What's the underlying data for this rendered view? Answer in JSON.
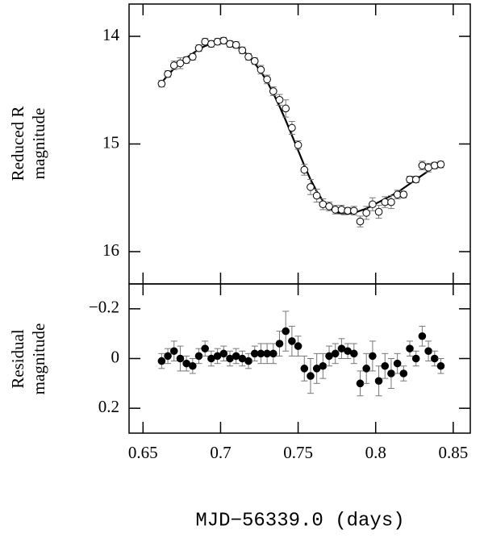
{
  "chart_data": [
    {
      "type": "scatter",
      "marker": "open",
      "ylabel": [
        "Reduced R",
        "magnitude"
      ],
      "xlim": [
        0.641,
        0.861
      ],
      "xticks": [
        0.65,
        0.7,
        0.75,
        0.8,
        0.85
      ],
      "ylim": [
        16.3,
        13.7
      ],
      "yticks": [
        14,
        15,
        16
      ],
      "x": [
        0.662,
        0.666,
        0.67,
        0.674,
        0.678,
        0.682,
        0.686,
        0.69,
        0.694,
        0.698,
        0.702,
        0.706,
        0.71,
        0.714,
        0.718,
        0.722,
        0.726,
        0.73,
        0.734,
        0.738,
        0.742,
        0.746,
        0.75,
        0.754,
        0.758,
        0.762,
        0.766,
        0.77,
        0.774,
        0.778,
        0.782,
        0.786,
        0.79,
        0.794,
        0.798,
        0.802,
        0.806,
        0.81,
        0.814,
        0.818,
        0.822,
        0.826,
        0.83,
        0.834,
        0.838,
        0.842
      ],
      "values": [
        14.44,
        14.35,
        14.27,
        14.25,
        14.22,
        14.19,
        14.11,
        14.05,
        14.07,
        14.05,
        14.04,
        14.07,
        14.08,
        14.13,
        14.19,
        14.23,
        14.31,
        14.4,
        14.51,
        14.59,
        14.67,
        14.85,
        15.01,
        15.24,
        15.4,
        15.48,
        15.56,
        15.58,
        15.61,
        15.61,
        15.62,
        15.62,
        15.72,
        15.64,
        15.56,
        15.63,
        15.54,
        15.54,
        15.47,
        15.47,
        15.33,
        15.33,
        15.2,
        15.22,
        15.2,
        15.19
      ],
      "errors": [
        0.03,
        0.03,
        0.04,
        0.05,
        0.03,
        0.03,
        0.03,
        0.03,
        0.03,
        0.03,
        0.03,
        0.03,
        0.03,
        0.03,
        0.03,
        0.03,
        0.04,
        0.04,
        0.04,
        0.05,
        0.08,
        0.06,
        0.04,
        0.05,
        0.07,
        0.06,
        0.05,
        0.04,
        0.04,
        0.04,
        0.03,
        0.04,
        0.05,
        0.06,
        0.06,
        0.06,
        0.05,
        0.06,
        0.04,
        0.03,
        0.03,
        0.03,
        0.04,
        0.04,
        0.03,
        0.03
      ],
      "model": [
        14.43,
        14.36,
        14.3,
        14.25,
        14.2,
        14.16,
        14.12,
        14.09,
        14.07,
        14.06,
        14.06,
        14.07,
        14.09,
        14.13,
        14.18,
        14.25,
        14.33,
        14.42,
        14.53,
        14.65,
        14.78,
        14.92,
        15.06,
        15.2,
        15.33,
        15.44,
        15.53,
        15.59,
        15.63,
        15.65,
        15.65,
        15.64,
        15.62,
        15.6,
        15.57,
        15.54,
        15.51,
        15.48,
        15.45,
        15.41,
        15.37,
        15.33,
        15.29,
        15.25,
        15.2,
        15.16
      ]
    },
    {
      "type": "scatter",
      "marker": "filled",
      "ylabel": [
        "Residual",
        "magnitude"
      ],
      "xlabel": "MJD−56339.0 (days)",
      "xlim": [
        0.641,
        0.861
      ],
      "xticks": [
        0.65,
        0.7,
        0.75,
        0.8,
        0.85
      ],
      "ylim": [
        0.3,
        -0.3
      ],
      "yticks": [
        {
          "value": -0.2,
          "label": "−0.2"
        },
        0,
        0.2
      ],
      "x": [
        0.662,
        0.666,
        0.67,
        0.674,
        0.678,
        0.682,
        0.686,
        0.69,
        0.694,
        0.698,
        0.702,
        0.706,
        0.71,
        0.714,
        0.718,
        0.722,
        0.726,
        0.73,
        0.734,
        0.738,
        0.742,
        0.746,
        0.75,
        0.754,
        0.758,
        0.762,
        0.766,
        0.77,
        0.774,
        0.778,
        0.782,
        0.786,
        0.79,
        0.794,
        0.798,
        0.802,
        0.806,
        0.81,
        0.814,
        0.818,
        0.822,
        0.826,
        0.83,
        0.834,
        0.838,
        0.842
      ],
      "values": [
        0.01,
        -0.01,
        -0.03,
        0.0,
        0.02,
        0.03,
        -0.01,
        -0.04,
        0.0,
        -0.01,
        -0.02,
        0.0,
        -0.01,
        0.0,
        0.01,
        -0.02,
        -0.02,
        -0.02,
        -0.02,
        -0.06,
        -0.11,
        -0.07,
        -0.05,
        0.04,
        0.07,
        0.04,
        0.03,
        -0.01,
        -0.02,
        -0.04,
        -0.03,
        -0.02,
        0.1,
        0.04,
        -0.01,
        0.09,
        0.03,
        0.06,
        0.02,
        0.06,
        -0.04,
        0.0,
        -0.09,
        -0.03,
        0.0,
        0.03
      ],
      "errors": [
        0.03,
        0.03,
        0.04,
        0.05,
        0.03,
        0.03,
        0.03,
        0.03,
        0.03,
        0.03,
        0.03,
        0.03,
        0.03,
        0.03,
        0.03,
        0.03,
        0.04,
        0.04,
        0.04,
        0.05,
        0.08,
        0.06,
        0.04,
        0.05,
        0.07,
        0.06,
        0.05,
        0.04,
        0.04,
        0.04,
        0.03,
        0.04,
        0.05,
        0.06,
        0.06,
        0.06,
        0.05,
        0.06,
        0.04,
        0.03,
        0.03,
        0.03,
        0.04,
        0.04,
        0.03,
        0.03
      ]
    }
  ]
}
